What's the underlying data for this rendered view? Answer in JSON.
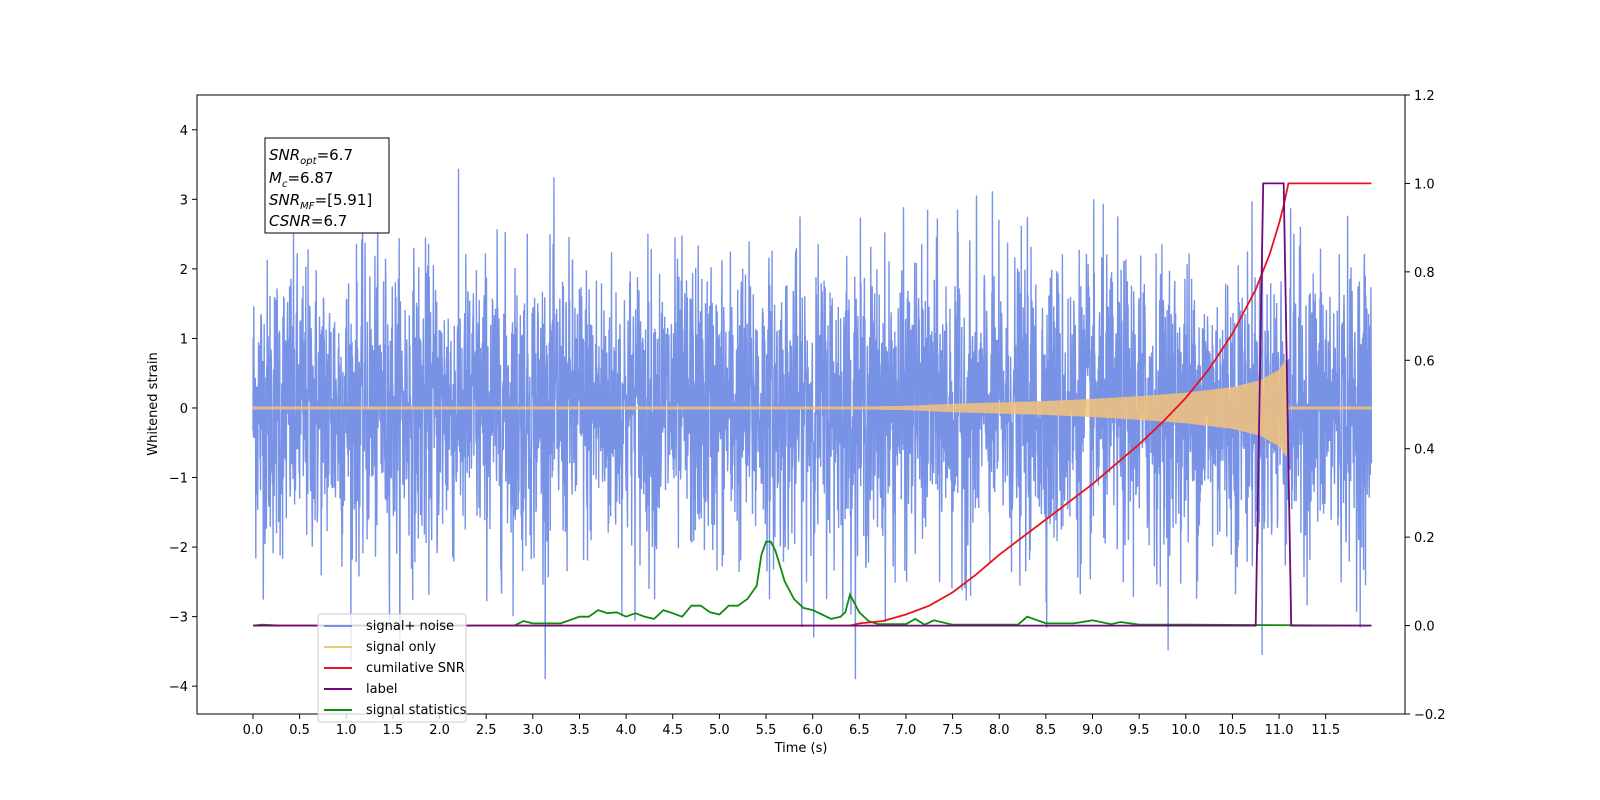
{
  "chart_data": {
    "type": "line",
    "xlabel": "Time (s)",
    "ylabel": "Whitened strain",
    "xlim": [
      -0.6,
      12.35
    ],
    "ylim": [
      -4.4,
      4.5
    ],
    "y2lim": [
      -0.2,
      1.2
    ],
    "x_ticks": [
      "0.0",
      "0.5",
      "1.0",
      "1.5",
      "2.0",
      "2.5",
      "3.0",
      "3.5",
      "4.0",
      "4.5",
      "5.0",
      "5.5",
      "6.0",
      "6.5",
      "7.0",
      "7.5",
      "8.0",
      "8.5",
      "9.0",
      "9.5",
      "10.0",
      "10.5",
      "11.0",
      "11.5"
    ],
    "x_tick_values": [
      0,
      0.5,
      1,
      1.5,
      2,
      2.5,
      3,
      3.5,
      4,
      4.5,
      5,
      5.5,
      6,
      6.5,
      7,
      7.5,
      8,
      8.5,
      9,
      9.5,
      10,
      10.5,
      11,
      11.5
    ],
    "y_ticks": [
      "4",
      "3",
      "2",
      "1",
      "0",
      "−1",
      "−2",
      "−3",
      "−4"
    ],
    "y_tick_values": [
      4,
      3,
      2,
      1,
      0,
      -1,
      -2,
      -3,
      -4
    ],
    "y2_ticks": [
      "1.2",
      "1.0",
      "0.8",
      "0.6",
      "0.4",
      "0.2",
      "0.0",
      "−0.2"
    ],
    "y2_tick_values": [
      1.2,
      1.0,
      0.8,
      0.6,
      0.4,
      0.2,
      0.0,
      -0.2
    ],
    "grid": false,
    "legend_position": "bottom-left",
    "annotation_lines": [
      {
        "base": "SNR",
        "sub": "opt",
        "rest": "=6.7"
      },
      {
        "base": "M",
        "sub": "c",
        "rest": "=6.87"
      },
      {
        "base": "SNR",
        "sub": "MF",
        "rest": "=[5.91]"
      },
      {
        "base": "CSNR",
        "sub": "",
        "rest": "=6.7"
      }
    ],
    "series": [
      {
        "name": "signal+ noise",
        "axis": "left",
        "color": "#7893e6",
        "description_noise_sigma": 1.0,
        "x_range": [
          0.0,
          11.99
        ]
      },
      {
        "name": "signal only",
        "axis": "left",
        "color": "#f4c27a",
        "x_range": [
          0.0,
          11.99
        ],
        "envelope": {
          "x": [
            0,
            6.5,
            7.0,
            7.5,
            8.0,
            8.5,
            9.0,
            9.5,
            10.0,
            10.5,
            10.8,
            11.0,
            11.05,
            11.08,
            11.1,
            11.99
          ],
          "y": [
            0.02,
            0.02,
            0.03,
            0.06,
            0.08,
            0.1,
            0.13,
            0.17,
            0.22,
            0.3,
            0.4,
            0.55,
            0.65,
            0.7,
            0.02,
            0.02
          ]
        }
      },
      {
        "name": "cumilative SNR",
        "axis": "right",
        "color": "#e8141c",
        "x": [
          0,
          6.4,
          6.5,
          6.75,
          7.0,
          7.25,
          7.5,
          7.75,
          8.0,
          8.25,
          8.5,
          8.75,
          9.0,
          9.25,
          9.5,
          9.75,
          10.0,
          10.25,
          10.5,
          10.75,
          10.9,
          11.0,
          11.05,
          11.1,
          11.99
        ],
        "values": [
          0,
          0,
          0.005,
          0.01,
          0.025,
          0.045,
          0.075,
          0.115,
          0.16,
          0.2,
          0.24,
          0.28,
          0.32,
          0.365,
          0.41,
          0.46,
          0.515,
          0.58,
          0.66,
          0.76,
          0.84,
          0.91,
          0.95,
          1.0,
          1.0
        ]
      },
      {
        "name": "label",
        "axis": "right",
        "color": "#6f0a7a",
        "x": [
          0,
          10.75,
          10.83,
          11.05,
          11.13,
          11.99
        ],
        "values": [
          0,
          0,
          1.0,
          1.0,
          0,
          0
        ]
      },
      {
        "name": "signal statistics",
        "axis": "right",
        "color": "#108a10",
        "x": [
          0,
          0.1,
          0.2,
          0.3,
          2.8,
          2.9,
          3.0,
          3.3,
          3.5,
          3.6,
          3.7,
          3.8,
          3.9,
          4.0,
          4.1,
          4.2,
          4.3,
          4.4,
          4.5,
          4.6,
          4.7,
          4.8,
          4.9,
          5.0,
          5.1,
          5.2,
          5.3,
          5.4,
          5.45,
          5.5,
          5.55,
          5.6,
          5.7,
          5.8,
          5.9,
          6.0,
          6.1,
          6.2,
          6.3,
          6.35,
          6.4,
          6.5,
          6.6,
          6.7,
          7.0,
          7.1,
          7.2,
          7.3,
          7.5,
          8.0,
          8.2,
          8.3,
          8.5,
          8.8,
          9.0,
          9.2,
          9.3,
          9.5,
          10.0,
          11.99
        ],
        "values": [
          0,
          0.002,
          0.001,
          0,
          0,
          0.01,
          0.005,
          0.005,
          0.02,
          0.02,
          0.035,
          0.028,
          0.03,
          0.02,
          0.028,
          0.02,
          0.015,
          0.035,
          0.028,
          0.02,
          0.045,
          0.045,
          0.03,
          0.025,
          0.045,
          0.045,
          0.06,
          0.09,
          0.16,
          0.19,
          0.19,
          0.17,
          0.1,
          0.06,
          0.04,
          0.035,
          0.025,
          0.015,
          0.02,
          0.03,
          0.07,
          0.03,
          0.01,
          0.003,
          0.003,
          0.015,
          0.002,
          0.012,
          0.002,
          0.002,
          0.002,
          0.02,
          0.005,
          0.005,
          0.012,
          0.003,
          0.008,
          0.002,
          0.002,
          0
        ]
      }
    ]
  },
  "legend": {
    "items": [
      "signal+ noise",
      "signal only",
      "cumilative SNR",
      "label",
      "signal statistics"
    ]
  }
}
